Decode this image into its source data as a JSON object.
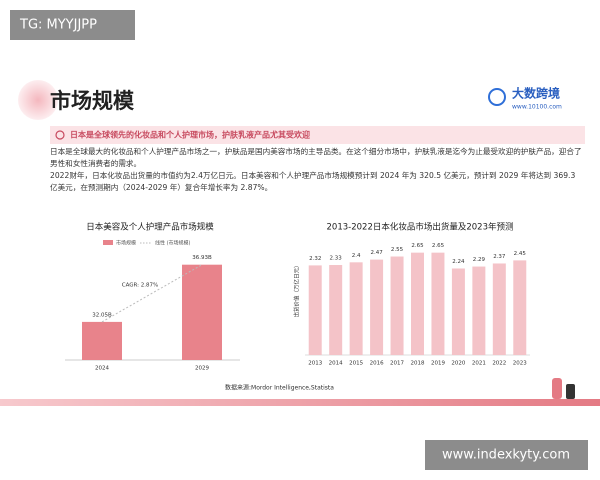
{
  "watermark": "TG: MYYJJPP",
  "site": "www.indexkyty.com",
  "header": {
    "title": "市场规模",
    "logo_name": "大数跨境",
    "logo_url": "www.10100.com"
  },
  "banner": "日本是全球领先的化妆品和个人护理市场，护肤乳液产品尤其受欢迎",
  "paragraphs": [
    "日本是全球最大的化妆品和个人护理产品市场之一，护肤品是国内美容市场的主导品类。在这个细分市场中，护肤乳液是迄今为止最受欢迎的护肤产品，迎合了男性和女性消费者的需求。",
    "2022财年，日本化妆品出货量的市值约为2.4万亿日元。日本美容和个人护理产品市场规模预计到 2024 年为 320.5 亿美元，预计到 2029 年将达到 369.3 亿美元，在预测期内（2024-2029 年）复合年增长率为 2.87%。"
  ],
  "source": "数据来源:Mordor Intelligence,Statista",
  "chart_data": [
    {
      "type": "bar",
      "title": "日本美容及个人护理产品市场规模",
      "categories": [
        "2024",
        "2029"
      ],
      "series": [
        {
          "name": "市场规模",
          "color": "#e8838b",
          "values": [
            32.05,
            36.93
          ],
          "value_labels": [
            "32.05B",
            "36.93B"
          ]
        }
      ],
      "trendline": {
        "name": "线性 (市场规模)",
        "color": "#bbbbbb"
      },
      "annotation": "CAGR: 2.87%",
      "ylim": [
        28.8,
        37.5
      ]
    },
    {
      "type": "bar",
      "title": "2013-2022日本化妆品市场出货量及2023年预测",
      "y_label": "出货价值（万亿日元）",
      "categories": [
        "2013",
        "2014",
        "2015",
        "2016",
        "2017",
        "2018",
        "2019",
        "2020",
        "2021",
        "2022",
        "2023"
      ],
      "values": [
        2.32,
        2.33,
        2.4,
        2.47,
        2.55,
        2.65,
        2.65,
        2.24,
        2.29,
        2.37,
        2.45
      ],
      "color": "#f4c3c8",
      "ylim": [
        0,
        2.9
      ]
    }
  ]
}
